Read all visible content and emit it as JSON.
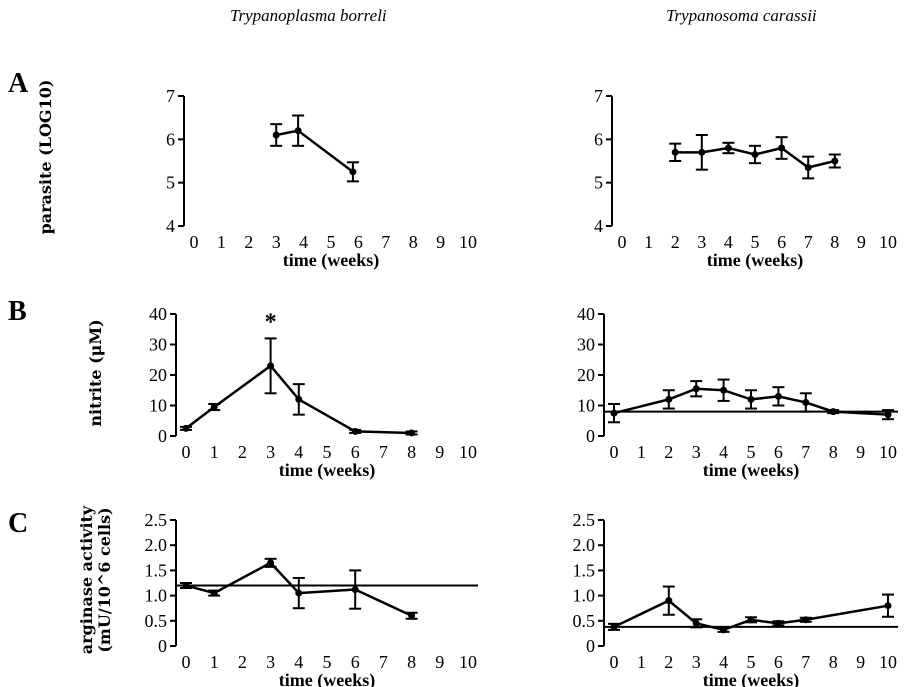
{
  "column_titles": [
    "Trypanoplasma borreli",
    "Trypanosoma carassii"
  ],
  "panel_letters": [
    "A",
    "B",
    "C"
  ],
  "ylabels": {
    "A": "parasite (LOG10)",
    "B": "nitrite (μM)",
    "C_line1": "arginase activity",
    "C_line2": "(mU/10^6 cells)"
  },
  "chart_data": [
    {
      "panel": "A",
      "column": "Trypanoplasma borreli",
      "type": "line",
      "xlabel": "time (weeks)",
      "ylabel": "parasite (LOG10)",
      "xlim": [
        0,
        10
      ],
      "ylim": [
        4,
        7
      ],
      "yticks": [
        4,
        5,
        6,
        7
      ],
      "xticks": [
        0,
        1,
        2,
        3,
        4,
        5,
        6,
        7,
        8,
        9,
        10
      ],
      "x": [
        3,
        3.8,
        5.8
      ],
      "y": [
        6.1,
        6.2,
        5.25
      ],
      "err": [
        0.25,
        0.35,
        0.22
      ],
      "reference_line": null,
      "annotations": []
    },
    {
      "panel": "A",
      "column": "Trypanosoma carassii",
      "type": "line",
      "xlabel": "time (weeks)",
      "ylabel": "parasite (LOG10)",
      "xlim": [
        0,
        10
      ],
      "ylim": [
        4,
        7
      ],
      "yticks": [
        4,
        5,
        6,
        7
      ],
      "xticks": [
        0,
        1,
        2,
        3,
        4,
        5,
        6,
        7,
        8,
        9,
        10
      ],
      "x": [
        2,
        3,
        4,
        5,
        6,
        7,
        8
      ],
      "y": [
        5.7,
        5.7,
        5.8,
        5.65,
        5.8,
        5.35,
        5.5
      ],
      "err": [
        0.2,
        0.4,
        0.12,
        0.2,
        0.25,
        0.25,
        0.15
      ],
      "reference_line": null,
      "annotations": []
    },
    {
      "panel": "B",
      "column": "Trypanoplasma borreli",
      "type": "line",
      "xlabel": "time (weeks)",
      "ylabel": "nitrite (μM)",
      "xlim": [
        0,
        10
      ],
      "ylim": [
        0,
        40
      ],
      "yticks": [
        0,
        10,
        20,
        30,
        40
      ],
      "xticks": [
        0,
        1,
        2,
        3,
        4,
        5,
        6,
        7,
        8,
        9,
        10
      ],
      "x": [
        0,
        1,
        3,
        4,
        6,
        8
      ],
      "y": [
        2.5,
        9.5,
        23,
        12,
        1.5,
        1
      ],
      "err": [
        0.5,
        1,
        9,
        5,
        0.5,
        0.5
      ],
      "reference_line": null,
      "annotations": [
        {
          "text": "*",
          "x": 3,
          "y": 35
        }
      ]
    },
    {
      "panel": "B",
      "column": "Trypanosoma carassii",
      "type": "line",
      "xlabel": "time (weeks)",
      "ylabel": "nitrite (μM)",
      "xlim": [
        0,
        10
      ],
      "ylim": [
        0,
        40
      ],
      "yticks": [
        0,
        10,
        20,
        30,
        40
      ],
      "xticks": [
        0,
        1,
        2,
        3,
        4,
        5,
        6,
        7,
        8,
        9,
        10
      ],
      "x": [
        0,
        2,
        3,
        4,
        5,
        6,
        7,
        8,
        10
      ],
      "y": [
        7.5,
        12,
        15.5,
        15,
        12,
        13,
        11,
        8,
        7
      ],
      "err": [
        3,
        3,
        2.5,
        3.5,
        3,
        3,
        3,
        0.5,
        1.5
      ],
      "reference_line": 8,
      "annotations": []
    },
    {
      "panel": "C",
      "column": "Trypanoplasma borreli",
      "type": "line",
      "xlabel": "time (weeks)",
      "ylabel": "arginase activity (mU/10^6 cells)",
      "xlim": [
        0,
        10
      ],
      "ylim": [
        0,
        2.5
      ],
      "yticks": [
        0,
        0.5,
        1.0,
        1.5,
        2.0,
        2.5
      ],
      "ytick_labels": [
        "0",
        "0.5",
        "1.0",
        "1.5",
        "2.0",
        "2.5"
      ],
      "xticks": [
        0,
        1,
        2,
        3,
        4,
        5,
        6,
        7,
        8,
        9,
        10
      ],
      "x": [
        0,
        1,
        3,
        4,
        6,
        8
      ],
      "y": [
        1.2,
        1.05,
        1.65,
        1.05,
        1.12,
        0.6
      ],
      "err": [
        0.05,
        0.05,
        0.08,
        0.3,
        0.38,
        0.06
      ],
      "reference_line": 1.2,
      "annotations": []
    },
    {
      "panel": "C",
      "column": "Trypanosoma carassii",
      "type": "line",
      "xlabel": "time (weeks)",
      "ylabel": "arginase activity (mU/10^6 cells)",
      "xlim": [
        0,
        10
      ],
      "ylim": [
        0,
        2.5
      ],
      "yticks": [
        0,
        0.5,
        1.0,
        1.5,
        2.0,
        2.5
      ],
      "ytick_labels": [
        "0",
        "0.5",
        "1.0",
        "1.5",
        "2.0",
        "2.5"
      ],
      "xticks": [
        0,
        1,
        2,
        3,
        4,
        5,
        6,
        7,
        8,
        9,
        10
      ],
      "x": [
        0,
        2,
        3,
        4,
        5,
        6,
        7,
        10
      ],
      "y": [
        0.38,
        0.9,
        0.45,
        0.32,
        0.52,
        0.45,
        0.52,
        0.8
      ],
      "err": [
        0.06,
        0.28,
        0.08,
        0.04,
        0.05,
        0.04,
        0.04,
        0.22
      ],
      "reference_line": 0.38,
      "annotations": []
    }
  ]
}
